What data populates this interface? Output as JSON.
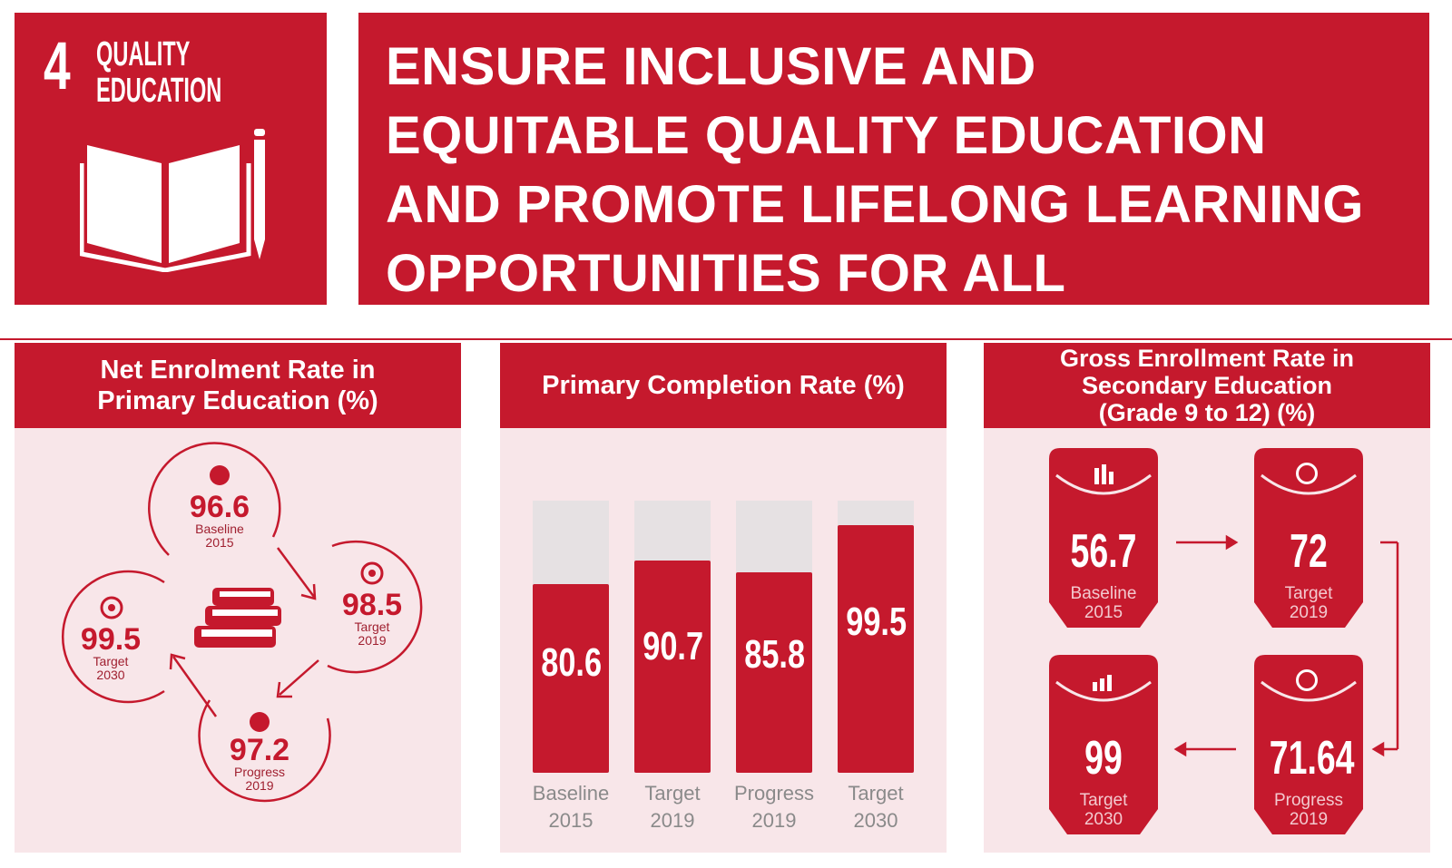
{
  "logo": {
    "number": "4",
    "title_line1": "QUALITY",
    "title_line2": "EDUCATION",
    "icon": "book-and-pencil-icon"
  },
  "headline": {
    "line1": "ENSURE INCLUSIVE AND",
    "line2": "EQUITABLE QUALITY EDUCATION",
    "line3": "AND PROMOTE LIFELONG LEARNING",
    "line4": "OPPORTUNITIES FOR ALL"
  },
  "colors": {
    "accent": "#c5192d",
    "panel_bg": "#f8e6e9",
    "bar_track": "#e6e1e3"
  },
  "panel1": {
    "title_line1": "Net Enrolment Rate in",
    "title_line2": "Primary Education (%)",
    "center_icon": "stack-of-books-icon",
    "items": [
      {
        "value": "96.6",
        "label1": "Baseline",
        "label2": "2015",
        "icon": "bar-chart-icon"
      },
      {
        "value": "98.5",
        "label1": "Target",
        "label2": "2019",
        "icon": "target-icon"
      },
      {
        "value": "97.2",
        "label1": "Progress",
        "label2": "2019",
        "icon": "progress-chart-icon"
      },
      {
        "value": "99.5",
        "label1": "Target",
        "label2": "2030",
        "icon": "target-icon"
      }
    ]
  },
  "panel2": {
    "title": "Primary Completion Rate (%)",
    "bars": [
      {
        "value": "80.6",
        "label1": "Baseline",
        "label2": "2015",
        "pct": 80.6
      },
      {
        "value": "90.7",
        "label1": "Target",
        "label2": "2019",
        "pct": 90.7
      },
      {
        "value": "85.8",
        "label1": "Progress",
        "label2": "2019",
        "pct": 85.8
      },
      {
        "value": "99.5",
        "label1": "Target",
        "label2": "2030",
        "pct": 99.5
      }
    ]
  },
  "panel3": {
    "title_line1": "Gross Enrollment Rate in",
    "title_line2": "Secondary Education",
    "title_line3": "(Grade 9 to 12) (%)",
    "tags": [
      {
        "value": "56.7",
        "label1": "Baseline",
        "label2": "2015",
        "icon": "bar-chart-icon"
      },
      {
        "value": "72",
        "label1": "Target",
        "label2": "2019",
        "icon": "target-icon"
      },
      {
        "value": "99",
        "label1": "Target",
        "label2": "2030",
        "icon": "progress-chart-icon"
      },
      {
        "value": "71.64",
        "label1": "Progress",
        "label2": "2019",
        "icon": "target-icon"
      }
    ]
  }
}
